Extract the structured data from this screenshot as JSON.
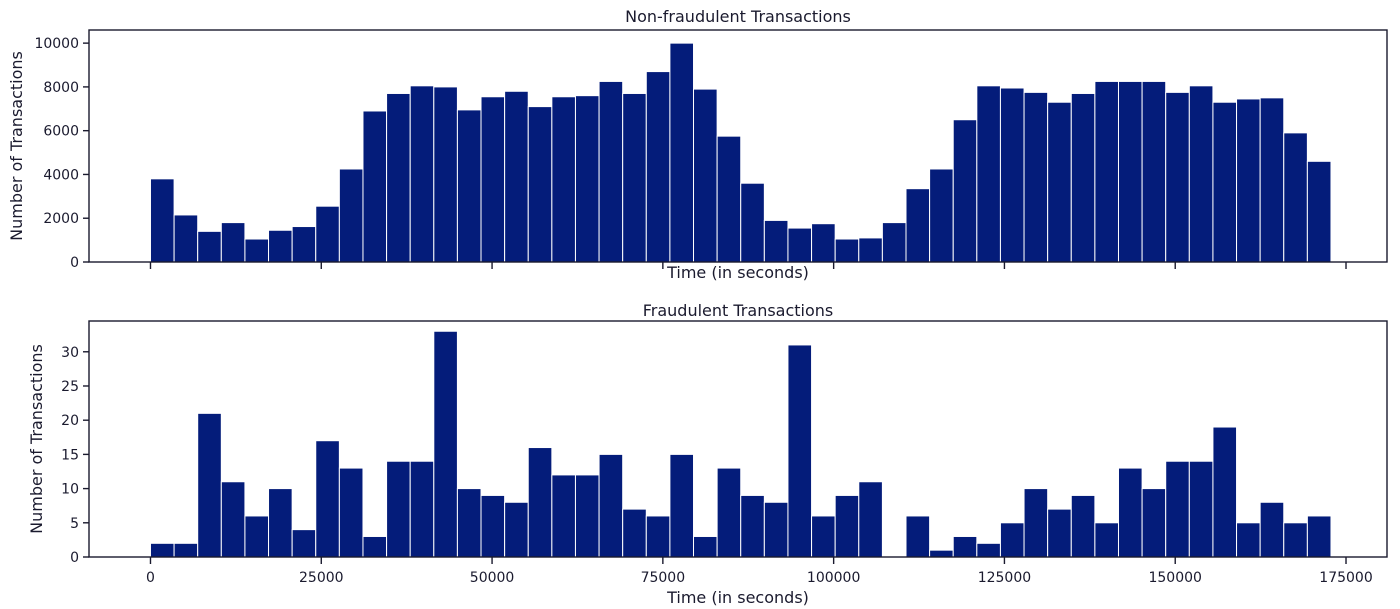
{
  "chart_data": [
    {
      "type": "bar",
      "title": "Non-fraudulent Transactions",
      "xlabel": "Time (in seconds)",
      "ylabel": "Number of Transactions",
      "bin_width": 3456,
      "bin_starts": [
        0,
        3456,
        6912,
        10368,
        13824,
        17280,
        20736,
        24192,
        27648,
        31104,
        34560,
        38016,
        41472,
        44928,
        48384,
        51840,
        55296,
        58752,
        62208,
        65664,
        69120,
        72576,
        76032,
        79488,
        82944,
        86400,
        89856,
        93312,
        96768,
        100224,
        103680,
        107136,
        110592,
        114048,
        117504,
        120960,
        124416,
        127872,
        131328,
        134784,
        138240,
        141696,
        145152,
        148608,
        152064,
        155520,
        158976,
        162432,
        165888,
        169344
      ],
      "values": [
        3800,
        2150,
        1400,
        1800,
        1050,
        1450,
        1620,
        2550,
        4250,
        6900,
        7700,
        8050,
        8000,
        6950,
        7550,
        7800,
        7100,
        7550,
        7600,
        8250,
        7700,
        8700,
        10000,
        7900,
        5750,
        3600,
        1900,
        1550,
        1750,
        1050,
        1100,
        1800,
        3350,
        4250,
        6500,
        8050,
        7950,
        7750,
        7300,
        7700,
        8250,
        8250,
        8250,
        7750,
        8050,
        7300,
        7450,
        7500,
        5900,
        4600
      ],
      "xlim": [
        -9000,
        181000
      ],
      "ylim": [
        0,
        10600
      ],
      "yticks": [
        0,
        2000,
        4000,
        6000,
        8000,
        10000
      ],
      "ytick_labels": [
        "0",
        "2000",
        "4000",
        "6000",
        "8000",
        "10000"
      ],
      "grid": false,
      "color": "#041c7a"
    },
    {
      "type": "bar",
      "title": "Fraudulent Transactions",
      "xlabel": "Time (in seconds)",
      "ylabel": "Number of Transactions",
      "bin_width": 3456,
      "bin_starts": [
        0,
        3456,
        6912,
        10368,
        13824,
        17280,
        20736,
        24192,
        27648,
        31104,
        34560,
        38016,
        41472,
        44928,
        48384,
        51840,
        55296,
        58752,
        62208,
        65664,
        69120,
        72576,
        76032,
        79488,
        82944,
        86400,
        89856,
        93312,
        96768,
        100224,
        103680,
        107136,
        110592,
        114048,
        117504,
        120960,
        124416,
        127872,
        131328,
        134784,
        138240,
        141696,
        145152,
        148608,
        152064,
        155520,
        158976,
        162432,
        165888,
        169344
      ],
      "values": [
        2,
        2,
        21,
        11,
        6,
        10,
        4,
        17,
        13,
        3,
        14,
        14,
        33,
        10,
        9,
        8,
        16,
        12,
        12,
        15,
        7,
        6,
        15,
        3,
        13,
        9,
        8,
        31,
        6,
        9,
        11,
        0,
        6,
        1,
        3,
        2,
        5,
        10,
        7,
        9,
        5,
        13,
        10,
        14,
        14,
        19,
        5,
        8,
        5,
        6
      ],
      "xlim": [
        -9000,
        181000
      ],
      "ylim": [
        0,
        34.5
      ],
      "yticks": [
        0,
        5,
        10,
        15,
        20,
        25,
        30
      ],
      "ytick_labels": [
        "0",
        "5",
        "10",
        "15",
        "20",
        "25",
        "30"
      ],
      "xticks": [
        0,
        25000,
        50000,
        75000,
        100000,
        125000,
        150000,
        175000
      ],
      "xtick_labels": [
        "0",
        "25000",
        "50000",
        "75000",
        "100000",
        "125000",
        "150000",
        "175000"
      ],
      "grid": false,
      "color": "#041c7a"
    }
  ]
}
